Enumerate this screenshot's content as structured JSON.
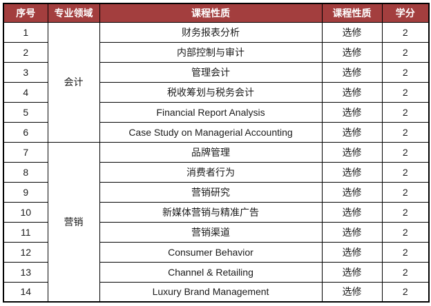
{
  "table": {
    "headers": [
      "序号",
      "专业领域",
      "课程性质",
      "课程性质",
      "学分"
    ],
    "groups": [
      {
        "field": "会计",
        "rows": [
          {
            "no": "1",
            "course": "财务报表分析",
            "nature": "选修",
            "credits": "2"
          },
          {
            "no": "2",
            "course": "内部控制与审计",
            "nature": "选修",
            "credits": "2"
          },
          {
            "no": "3",
            "course": "管理会计",
            "nature": "选修",
            "credits": "2"
          },
          {
            "no": "4",
            "course": "税收筹划与税务会计",
            "nature": "选修",
            "credits": "2"
          },
          {
            "no": "5",
            "course": "Financial Report Analysis",
            "nature": "选修",
            "credits": "2"
          },
          {
            "no": "6",
            "course": "Case Study on Managerial Accounting",
            "nature": "选修",
            "credits": "2"
          }
        ]
      },
      {
        "field": "营销",
        "rows": [
          {
            "no": "7",
            "course": "品牌管理",
            "nature": "选修",
            "credits": "2"
          },
          {
            "no": "8",
            "course": "消费者行为",
            "nature": "选修",
            "credits": "2"
          },
          {
            "no": "9",
            "course": "营销研究",
            "nature": "选修",
            "credits": "2"
          },
          {
            "no": "10",
            "course": "新媒体营销与精准广告",
            "nature": "选修",
            "credits": "2"
          },
          {
            "no": "11",
            "course": "营销渠道",
            "nature": "选修",
            "credits": "2"
          },
          {
            "no": "12",
            "course": "Consumer Behavior",
            "nature": "选修",
            "credits": "2"
          },
          {
            "no": "13",
            "course": "Channel & Retailing",
            "nature": "选修",
            "credits": "2"
          },
          {
            "no": "14",
            "course": "Luxury Brand Management",
            "nature": "选修",
            "credits": "2"
          }
        ]
      }
    ],
    "colors": {
      "header_bg": "#A33E3E",
      "header_text": "#FFFFFF",
      "border": "#000000",
      "body_text": "#1A1A1A",
      "background": "#FFFFFF"
    }
  }
}
